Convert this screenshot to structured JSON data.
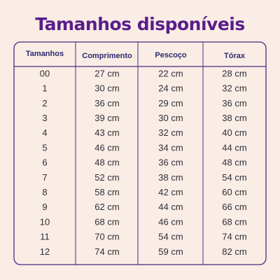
{
  "title": "Tamanhos disponíveis",
  "table": {
    "header": [
      "Tamanhos",
      "Comprimento",
      "Pescoço",
      "Tórax"
    ],
    "rows": [
      [
        "00",
        "27 cm",
        "22 cm",
        "28 cm"
      ],
      [
        "1",
        "30 cm",
        "24 cm",
        "32 cm"
      ],
      [
        "2",
        "36 cm",
        "29 cm",
        "36 cm"
      ],
      [
        "3",
        "39 cm",
        "30 cm",
        "38 cm"
      ],
      [
        "4",
        "43 cm",
        "32 cm",
        "40 cm"
      ],
      [
        "5",
        "46 cm",
        "34 cm",
        "44 cm"
      ],
      [
        "6",
        "48 cm",
        "36 cm",
        "48 cm"
      ],
      [
        "7",
        "52 cm",
        "38 cm",
        "54 cm"
      ],
      [
        "8",
        "58 cm",
        "42 cm",
        "60 cm"
      ],
      [
        "9",
        "62 cm",
        "44 cm",
        "66 cm"
      ],
      [
        "10",
        "68 cm",
        "46 cm",
        "68 cm"
      ],
      [
        "11",
        "70 cm",
        "54 cm",
        "74 cm"
      ],
      [
        "12",
        "74 cm",
        "59 cm",
        "82 cm"
      ]
    ]
  }
}
